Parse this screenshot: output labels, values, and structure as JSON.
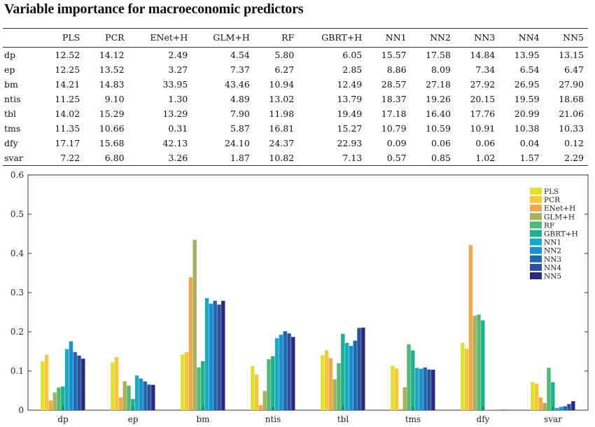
{
  "title": "Variable importance for macroeconomic predictors",
  "table": {
    "columns": [
      "",
      "PLS",
      "PCR",
      "ENet+H",
      "GLM+H",
      "RF",
      "GBRT+H",
      "NN1",
      "NN2",
      "NN3",
      "NN4",
      "NN5"
    ],
    "rows": [
      [
        "dp",
        "12.52",
        "14.12",
        "2.49",
        "4.54",
        "5.80",
        "6.05",
        "15.57",
        "17.58",
        "14.84",
        "13.95",
        "13.15"
      ],
      [
        "ep",
        "12.25",
        "13.52",
        "3.27",
        "7.37",
        "6.27",
        "2.85",
        "8.86",
        "8.09",
        "7.34",
        "6.54",
        "6.47"
      ],
      [
        "bm",
        "14.21",
        "14.83",
        "33.95",
        "43.46",
        "10.94",
        "12.49",
        "28.57",
        "27.18",
        "27.92",
        "26.95",
        "27.90"
      ],
      [
        "ntis",
        "11.25",
        "9.10",
        "1.30",
        "4.89",
        "13.02",
        "13.79",
        "18.37",
        "19.26",
        "20.15",
        "19.59",
        "18.68"
      ],
      [
        "tbl",
        "14.02",
        "15.29",
        "13.29",
        "7.90",
        "11.98",
        "19.49",
        "17.18",
        "16.40",
        "17.76",
        "20.99",
        "21.06"
      ],
      [
        "tms",
        "11.35",
        "10.66",
        "0.31",
        "5.87",
        "16.81",
        "15.27",
        "10.79",
        "10.59",
        "10.91",
        "10.38",
        "10.33"
      ],
      [
        "dfy",
        "17.17",
        "15.68",
        "42.13",
        "24.10",
        "24.37",
        "22.93",
        "0.09",
        "0.06",
        "0.06",
        "0.04",
        "0.12"
      ],
      [
        "svar",
        "7.22",
        "6.80",
        "3.26",
        "1.87",
        "10.82",
        "7.13",
        "0.57",
        "0.85",
        "1.02",
        "1.57",
        "2.29"
      ]
    ]
  },
  "chart_data": {
    "type": "bar",
    "categories": [
      "dp",
      "ep",
      "bm",
      "ntis",
      "tbl",
      "tms",
      "dfy",
      "svar"
    ],
    "ylim": [
      0,
      0.6
    ],
    "yticks": [
      0,
      0.1,
      0.2,
      0.3,
      0.4,
      0.5,
      0.6
    ],
    "ytick_labels": [
      "0",
      "0.1",
      "0.2",
      "0.3",
      "0.4",
      "0.5",
      "0.6"
    ],
    "legend_position": "top-right",
    "grid": false,
    "series": [
      {
        "name": "PLS",
        "color": "#dfe12e",
        "values": [
          0.1252,
          0.1225,
          0.1421,
          0.1125,
          0.1402,
          0.1135,
          0.1717,
          0.0722
        ]
      },
      {
        "name": "PCR",
        "color": "#f6c93c",
        "values": [
          0.1412,
          0.1352,
          0.1483,
          0.091,
          0.1529,
          0.1066,
          0.1568,
          0.068
        ]
      },
      {
        "name": "ENet+H",
        "color": "#f0a94f",
        "values": [
          0.0249,
          0.0327,
          0.3395,
          0.013,
          0.1329,
          0.0031,
          0.4213,
          0.0326
        ]
      },
      {
        "name": "GLM+H",
        "color": "#a3b35b",
        "values": [
          0.0454,
          0.0737,
          0.4346,
          0.0489,
          0.079,
          0.0587,
          0.241,
          0.0187
        ]
      },
      {
        "name": "RF",
        "color": "#52b77b",
        "values": [
          0.058,
          0.0627,
          0.1094,
          0.1302,
          0.1198,
          0.1681,
          0.2437,
          0.1082
        ]
      },
      {
        "name": "GBRT+H",
        "color": "#1eb08f",
        "values": [
          0.0605,
          0.0285,
          0.1249,
          0.1379,
          0.1949,
          0.1527,
          0.2293,
          0.0713
        ]
      },
      {
        "name": "NN1",
        "color": "#16abc2",
        "values": [
          0.1557,
          0.0886,
          0.2857,
          0.1837,
          0.1718,
          0.1079,
          0.0009,
          0.0057
        ]
      },
      {
        "name": "NN2",
        "color": "#1b8fd2",
        "values": [
          0.1758,
          0.0809,
          0.2718,
          0.1926,
          0.164,
          0.1059,
          0.0006,
          0.0085
        ]
      },
      {
        "name": "NN3",
        "color": "#1e6aad",
        "values": [
          0.1484,
          0.0734,
          0.2792,
          0.2015,
          0.1776,
          0.1091,
          0.0006,
          0.0102
        ]
      },
      {
        "name": "NN4",
        "color": "#2e4e9e",
        "values": [
          0.1395,
          0.0654,
          0.2695,
          0.1959,
          0.2099,
          0.1038,
          0.0004,
          0.0157
        ]
      },
      {
        "name": "NN5",
        "color": "#2b2a7c",
        "values": [
          0.1315,
          0.0647,
          0.279,
          0.1868,
          0.2106,
          0.1033,
          0.0012,
          0.0229
        ]
      }
    ]
  }
}
